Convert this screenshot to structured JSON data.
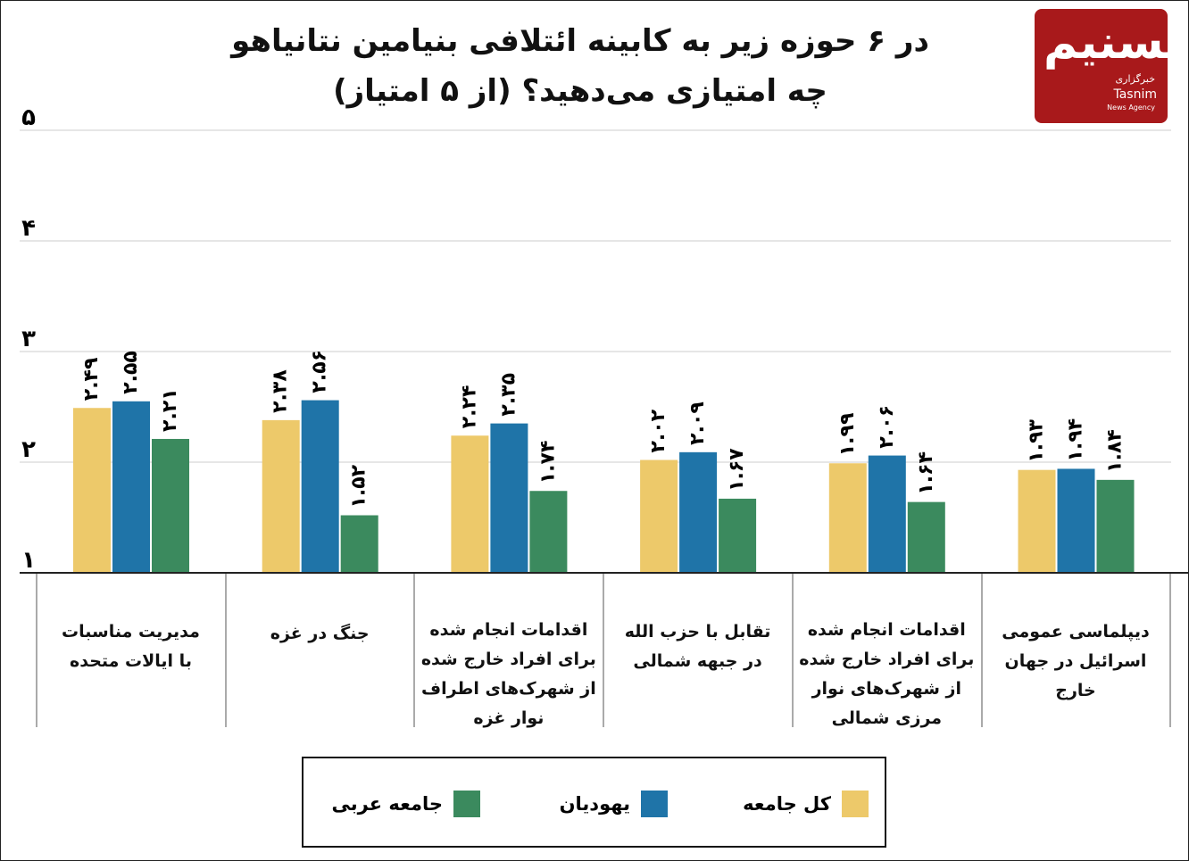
{
  "title": [
    "در ۶ حوزه زیر به کابینه ائتلافی بنیامین نتانیاهو",
    "چه امتیازی می‌دهید؟ (از ۵ امتیاز)"
  ],
  "logo": {
    "mark": "تسنیم",
    "line1": "خبرگزاری",
    "line2": "Tasnim",
    "line3": "News Agency",
    "color": "#a8191b"
  },
  "chart_data": {
    "type": "bar",
    "title": "در ۶ حوزه زیر به کابینه ائتلافی بنیامین نتانیاهو چه امتیازی می‌دهید؟ (از ۵ امتیاز)",
    "categories": [
      [
        "مدیریت مناسبات",
        "با ایالات متحده"
      ],
      [
        "جنگ در غزه"
      ],
      [
        "اقدامات انجام شده",
        "برای افراد خارج شده",
        "از شهرک‌های اطراف",
        "نوار غزه"
      ],
      [
        "تقابل با حزب الله",
        "در جبهه شمالی"
      ],
      [
        "اقدامات انجام شده",
        "برای افراد خارج شده",
        "از شهرک‌های نوار",
        "مرزی شمالی"
      ],
      [
        "دیپلماسی عمومی",
        "اسرائیل در جهان خارج"
      ]
    ],
    "series": [
      {
        "name": "کل جامعه",
        "color": "#edc96a",
        "values": [
          2.49,
          2.38,
          2.24,
          2.02,
          1.99,
          1.93
        ],
        "labels": [
          "۲.۴۹",
          "۲.۳۸",
          "۲.۲۴",
          "۲.۰۲",
          "۱.۹۹",
          "۱.۹۳"
        ]
      },
      {
        "name": "یهودیان",
        "color": "#1f74a8",
        "values": [
          2.55,
          2.56,
          2.35,
          2.09,
          2.06,
          1.94
        ],
        "labels": [
          "۲.۵۵",
          "۲.۵۶",
          "۲.۳۵",
          "۲.۰۹",
          "۲.۰۶",
          "۱.۹۴"
        ]
      },
      {
        "name": "جامعه عربی",
        "color": "#3b8a5e",
        "values": [
          2.21,
          1.52,
          1.74,
          1.67,
          1.64,
          1.84
        ],
        "labels": [
          "۲.۲۱",
          "۱.۵۲",
          "۱.۷۴",
          "۱.۶۷",
          "۱.۶۴",
          "۱.۸۴"
        ]
      }
    ],
    "yticks": [
      1,
      2,
      3,
      4,
      5
    ],
    "ytick_labels": [
      "۱",
      "۲",
      "۳",
      "۴",
      "۵"
    ],
    "ylim": [
      1,
      5
    ],
    "grid": true,
    "legend": "bottom"
  }
}
